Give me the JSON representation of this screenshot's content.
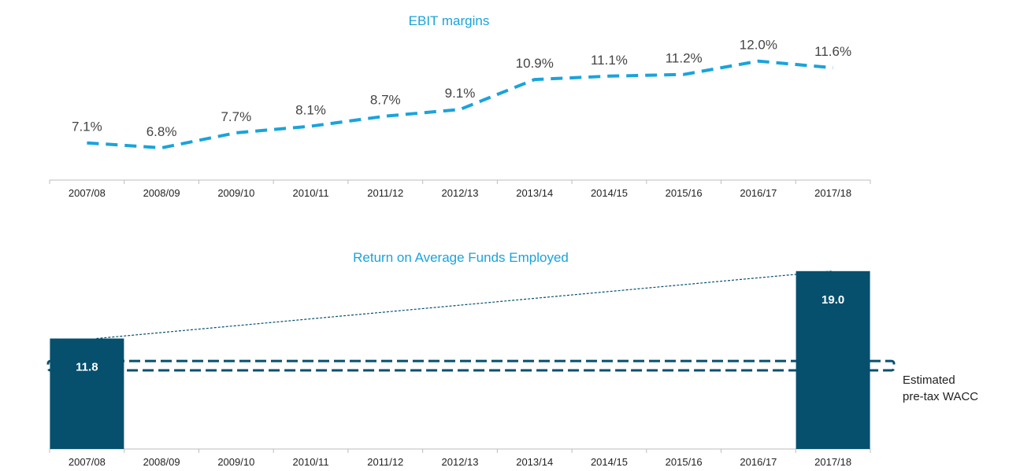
{
  "chart_data": [
    {
      "type": "line",
      "title": "EBIT margins",
      "categories": [
        "2007/08",
        "2008/09",
        "2009/10",
        "2010/11",
        "2011/12",
        "2012/13",
        "2013/14",
        "2014/15",
        "2015/16",
        "2016/17",
        "2017/18"
      ],
      "values": [
        7.1,
        6.8,
        7.7,
        8.1,
        8.7,
        9.1,
        10.9,
        11.1,
        11.2,
        12.0,
        11.6
      ],
      "data_labels": [
        "7.1%",
        "6.8%",
        "7.7%",
        "8.1%",
        "8.7%",
        "9.1%",
        "10.9%",
        "11.1%",
        "11.2%",
        "12.0%",
        "11.6%"
      ],
      "line_style": "dashed",
      "color": "#1aa3dc",
      "grid": false,
      "ylim": [
        6,
        12.6
      ]
    },
    {
      "type": "bar",
      "title": "Return on Average Funds Employed",
      "categories": [
        "2007/08",
        "2008/09",
        "2009/10",
        "2010/11",
        "2011/12",
        "2012/13",
        "2013/14",
        "2014/15",
        "2015/16",
        "2016/17",
        "2017/18"
      ],
      "values": [
        11.8,
        null,
        null,
        null,
        null,
        null,
        null,
        null,
        null,
        null,
        19.0
      ],
      "data_labels": [
        "11.8",
        "",
        "",
        "",
        "",
        "",
        "",
        "",
        "",
        "",
        "19.0"
      ],
      "color": "#06506e",
      "grid": false,
      "ylim": [
        0,
        19.4
      ],
      "annotation": {
        "label_lines": [
          "Estimated",
          "pre-tax WACC"
        ],
        "range": [
          8.4,
          9.4
        ],
        "style": "dashed-box"
      },
      "trend_line": {
        "from": "2007/08",
        "to": "2017/18",
        "style": "dotted"
      }
    }
  ]
}
